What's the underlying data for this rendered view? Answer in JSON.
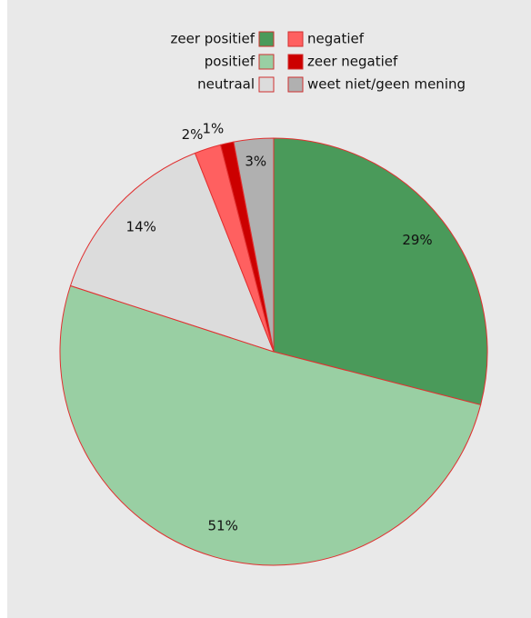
{
  "chart_data": {
    "type": "pie",
    "categories": [
      "zeer positief",
      "positief",
      "neutraal",
      "negatief",
      "zeer negatief",
      "weet niet/geen mening"
    ],
    "values": [
      29,
      51,
      14,
      2,
      1,
      3
    ],
    "value_labels": [
      "29%",
      "51%",
      "14%",
      "2%",
      "1%",
      "3%"
    ],
    "colors": [
      "#4a9a5a",
      "#99cfa3",
      "#dcdcdc",
      "#ff6060",
      "#cc0000",
      "#b0b0b0"
    ],
    "legend": "top"
  }
}
